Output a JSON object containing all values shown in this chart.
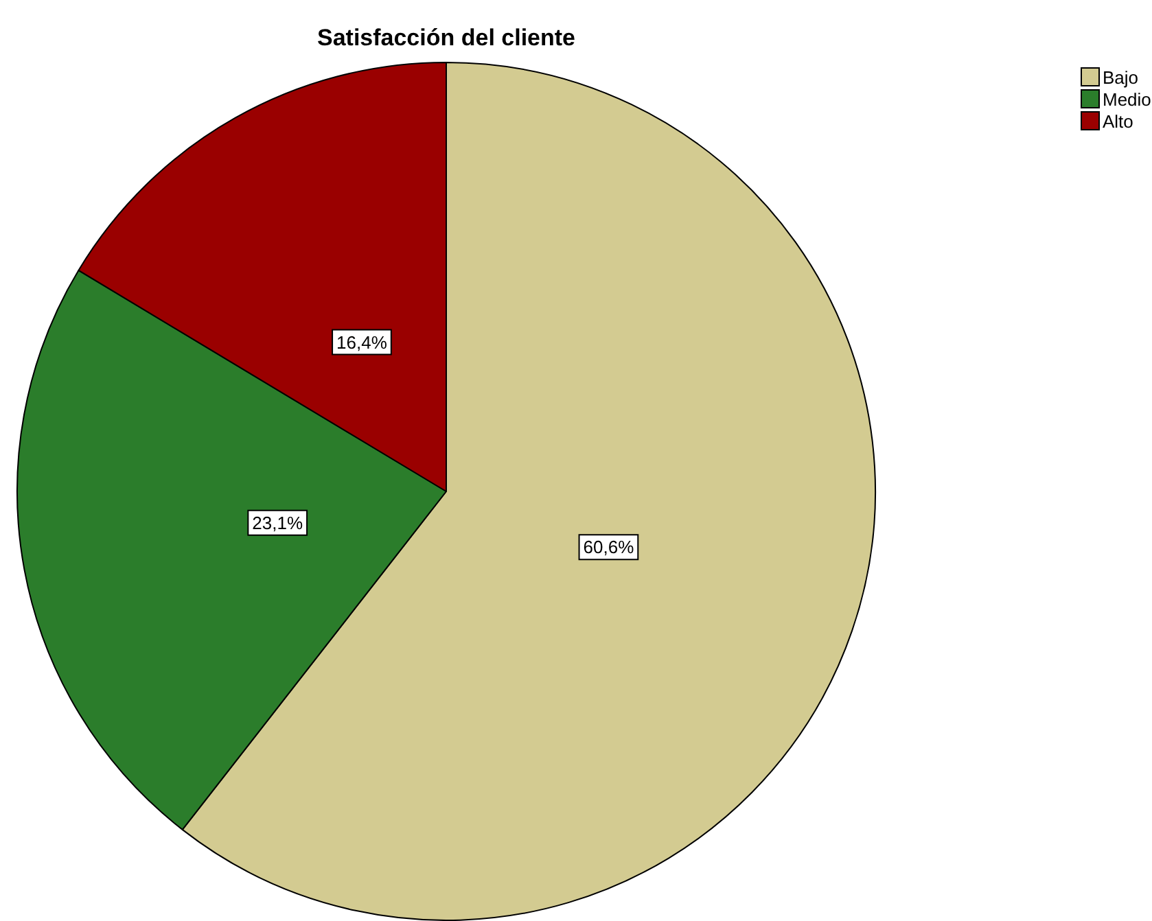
{
  "chart_data": {
    "type": "pie",
    "title": "Satisfacción del cliente",
    "categories": [
      "Bajo",
      "Medio",
      "Alto"
    ],
    "values": [
      60.6,
      23.1,
      16.4
    ],
    "colors": [
      "#d3cb91",
      "#2b7d2b",
      "#9a0000"
    ],
    "value_labels": [
      "60,6%",
      "23,1%",
      "16,4%"
    ],
    "legend": "top right"
  }
}
